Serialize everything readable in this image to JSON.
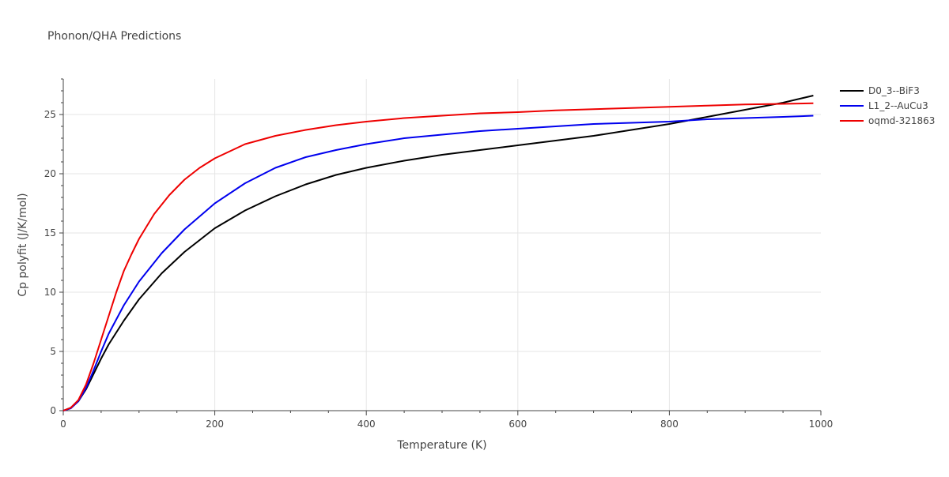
{
  "chart_data": {
    "type": "line",
    "title": "Phonon/QHA Predictions",
    "xlabel": "Temperature (K)",
    "ylabel": "Cp polyfit (J/K/mol)",
    "xlim": [
      0,
      1000
    ],
    "ylim": [
      0,
      28
    ],
    "x_ticks": [
      0,
      200,
      400,
      600,
      800,
      1000
    ],
    "y_ticks": [
      0,
      5,
      10,
      15,
      20,
      25
    ],
    "grid": true,
    "legend_position": "top-right",
    "series": [
      {
        "name": "D0_3--BiF3",
        "color": "#000000",
        "points": [
          [
            0,
            0
          ],
          [
            10,
            0.25
          ],
          [
            20,
            0.8
          ],
          [
            30,
            1.8
          ],
          [
            40,
            3.1
          ],
          [
            50,
            4.4
          ],
          [
            60,
            5.6
          ],
          [
            80,
            7.6
          ],
          [
            100,
            9.4
          ],
          [
            130,
            11.6
          ],
          [
            160,
            13.4
          ],
          [
            200,
            15.4
          ],
          [
            240,
            16.9
          ],
          [
            280,
            18.1
          ],
          [
            320,
            19.1
          ],
          [
            360,
            19.9
          ],
          [
            400,
            20.5
          ],
          [
            450,
            21.1
          ],
          [
            500,
            21.6
          ],
          [
            550,
            22.0
          ],
          [
            600,
            22.4
          ],
          [
            650,
            22.8
          ],
          [
            700,
            23.2
          ],
          [
            750,
            23.7
          ],
          [
            800,
            24.2
          ],
          [
            850,
            24.8
          ],
          [
            900,
            25.4
          ],
          [
            950,
            26.0
          ],
          [
            990,
            26.6
          ]
        ]
      },
      {
        "name": "L1_2--AuCu3",
        "color": "#0000ee",
        "points": [
          [
            0,
            0
          ],
          [
            10,
            0.2
          ],
          [
            20,
            0.8
          ],
          [
            30,
            1.9
          ],
          [
            40,
            3.4
          ],
          [
            50,
            5.0
          ],
          [
            60,
            6.5
          ],
          [
            80,
            8.9
          ],
          [
            100,
            10.9
          ],
          [
            130,
            13.3
          ],
          [
            160,
            15.3
          ],
          [
            200,
            17.5
          ],
          [
            240,
            19.2
          ],
          [
            280,
            20.5
          ],
          [
            320,
            21.4
          ],
          [
            360,
            22.0
          ],
          [
            400,
            22.5
          ],
          [
            450,
            23.0
          ],
          [
            500,
            23.3
          ],
          [
            550,
            23.6
          ],
          [
            600,
            23.8
          ],
          [
            650,
            24.0
          ],
          [
            700,
            24.2
          ],
          [
            750,
            24.3
          ],
          [
            800,
            24.4
          ],
          [
            850,
            24.6
          ],
          [
            900,
            24.7
          ],
          [
            950,
            24.8
          ],
          [
            990,
            24.9
          ]
        ]
      },
      {
        "name": "oqmd-321863",
        "color": "#ee0000",
        "points": [
          [
            0,
            0
          ],
          [
            10,
            0.25
          ],
          [
            20,
            0.9
          ],
          [
            30,
            2.2
          ],
          [
            40,
            4.0
          ],
          [
            50,
            6.0
          ],
          [
            60,
            8.0
          ],
          [
            70,
            10.0
          ],
          [
            80,
            11.8
          ],
          [
            90,
            13.2
          ],
          [
            100,
            14.5
          ],
          [
            120,
            16.6
          ],
          [
            140,
            18.2
          ],
          [
            160,
            19.5
          ],
          [
            180,
            20.5
          ],
          [
            200,
            21.3
          ],
          [
            240,
            22.5
          ],
          [
            280,
            23.2
          ],
          [
            320,
            23.7
          ],
          [
            360,
            24.1
          ],
          [
            400,
            24.4
          ],
          [
            450,
            24.7
          ],
          [
            500,
            24.9
          ],
          [
            550,
            25.1
          ],
          [
            600,
            25.2
          ],
          [
            650,
            25.35
          ],
          [
            700,
            25.45
          ],
          [
            750,
            25.55
          ],
          [
            800,
            25.65
          ],
          [
            850,
            25.75
          ],
          [
            900,
            25.85
          ],
          [
            950,
            25.9
          ],
          [
            990,
            25.95
          ]
        ]
      }
    ]
  }
}
